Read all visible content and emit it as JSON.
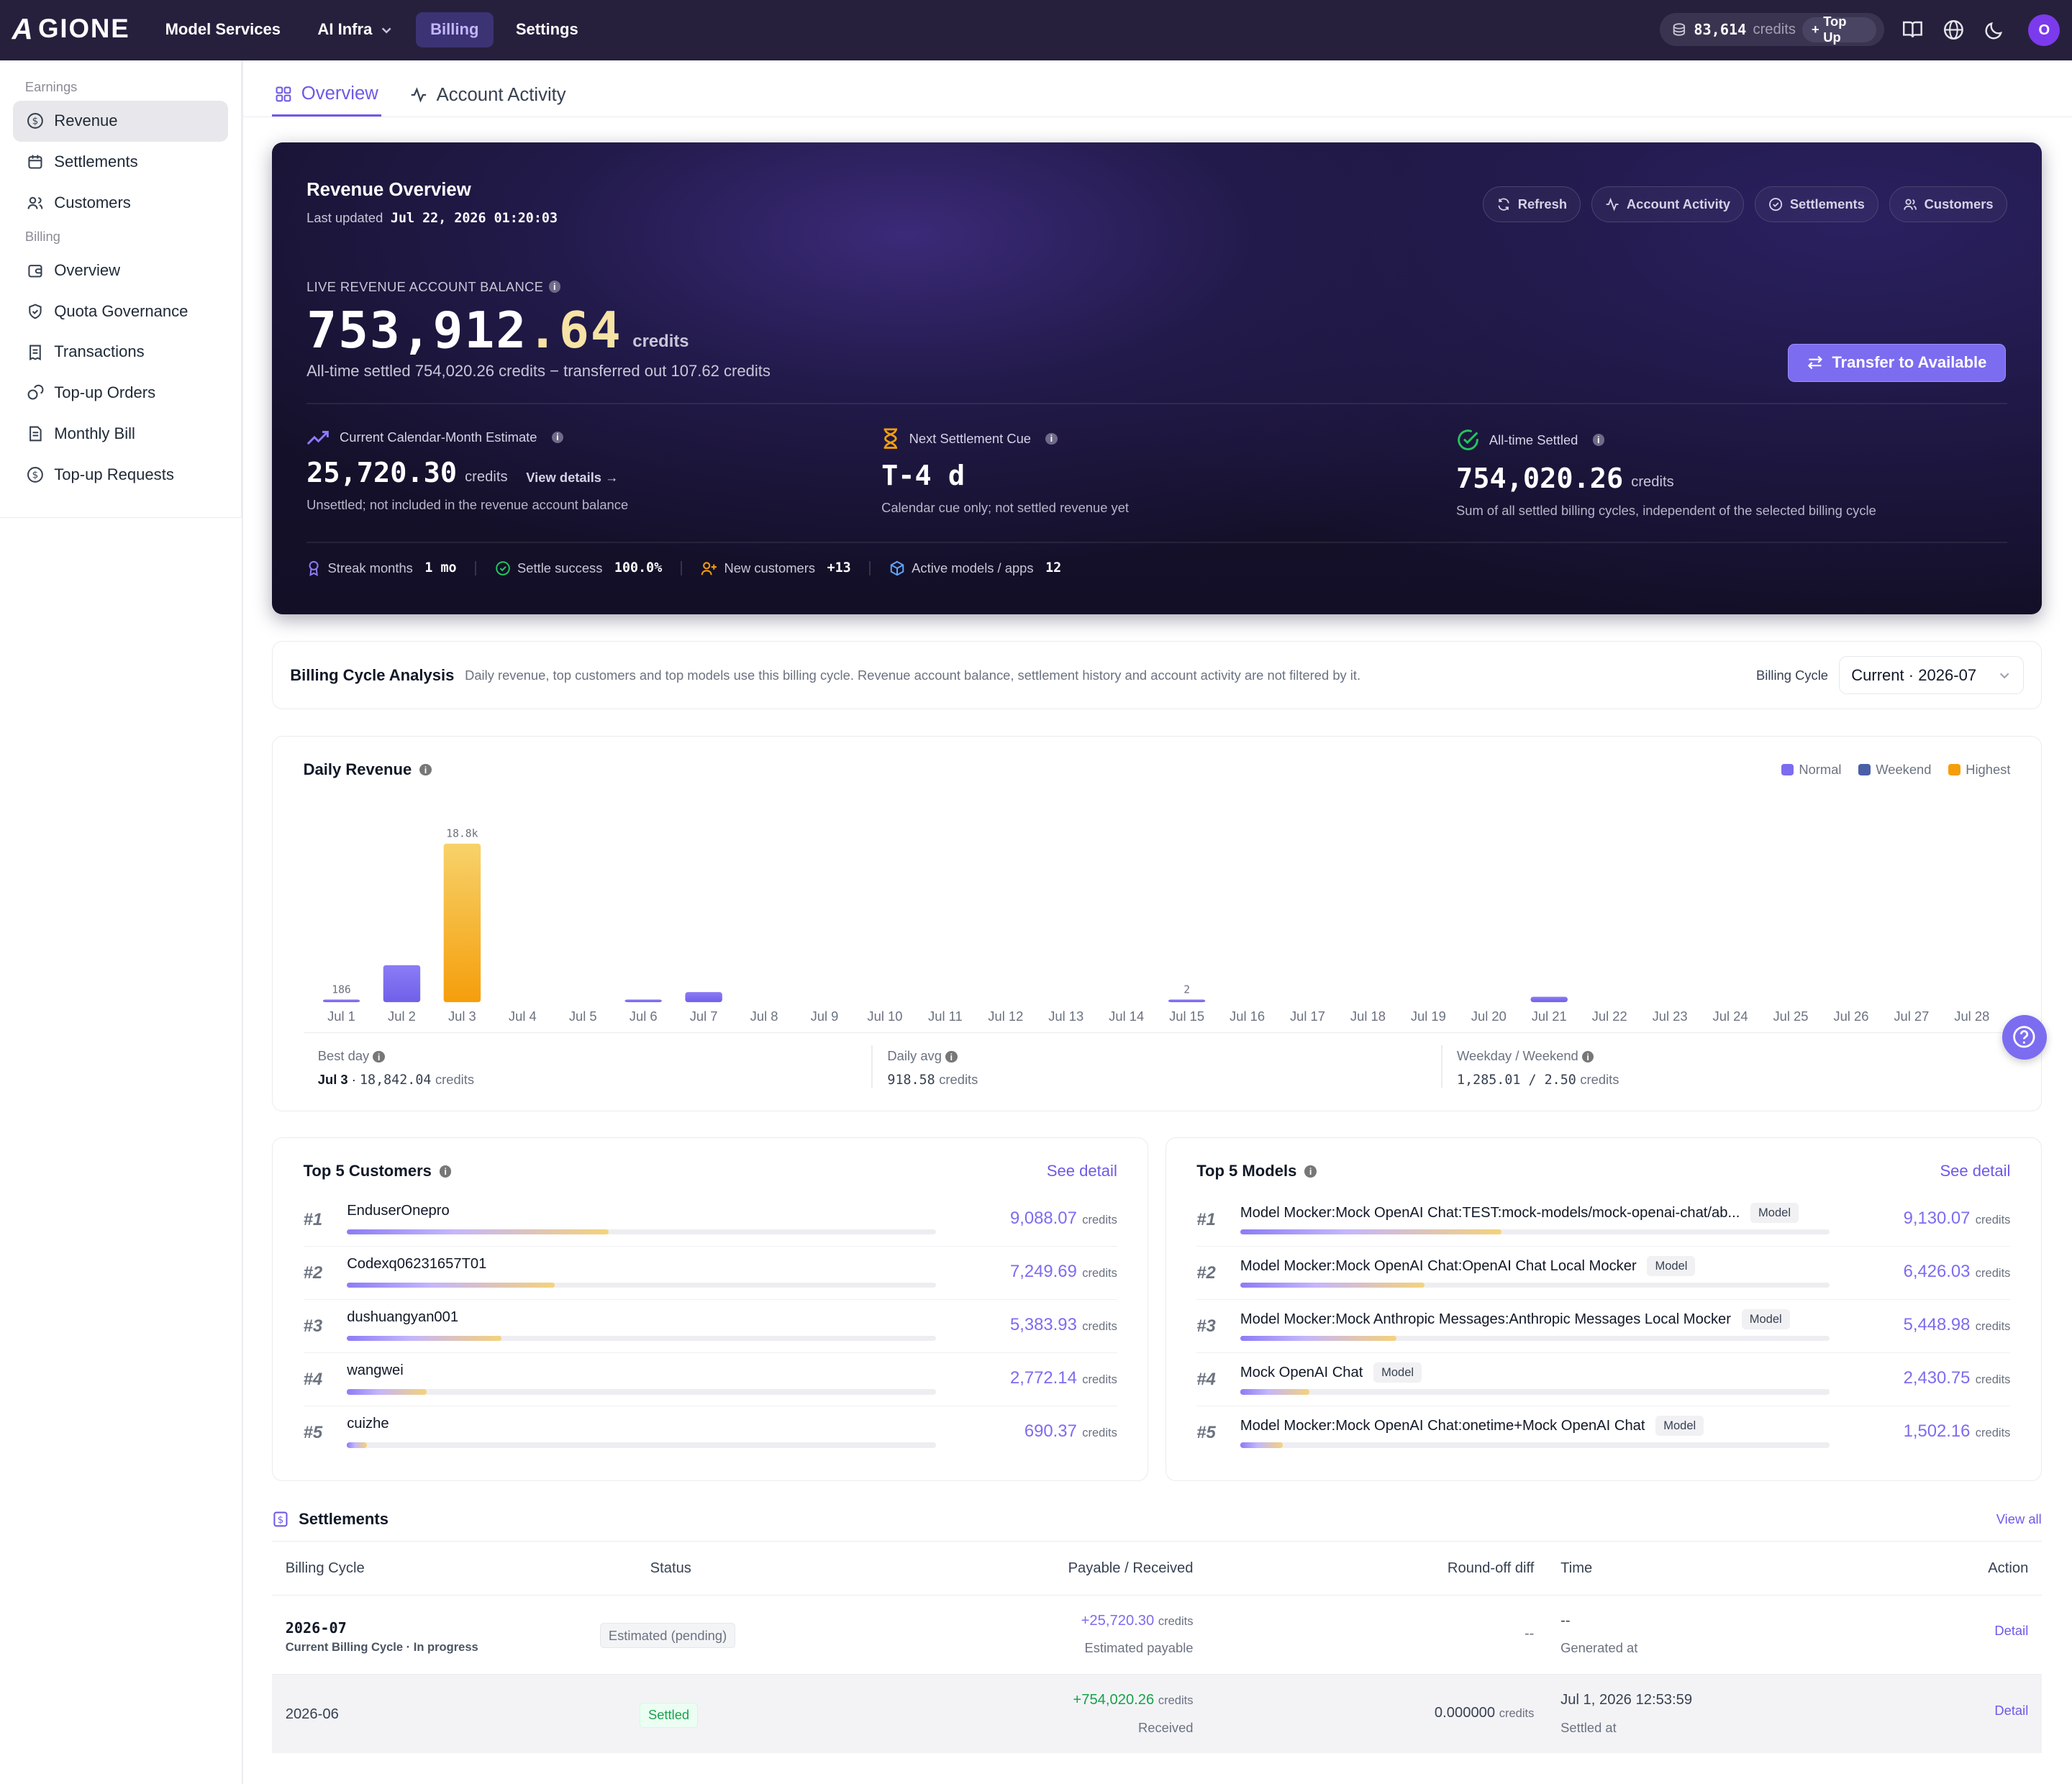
{
  "brand": {
    "name": "GIONE",
    "mark": "A"
  },
  "topnav": {
    "links": [
      "Model Services",
      "AI Infra",
      "Billing",
      "Settings"
    ],
    "credits_amount": "83,614",
    "credits_label": "credits",
    "topup_label": "Top Up",
    "avatar_initial": "O",
    "accent": "#7c6cf0"
  },
  "sidebar": {
    "earnings_label": "Earnings",
    "earnings_items": [
      "Revenue",
      "Settlements",
      "Customers"
    ],
    "billing_label": "Billing",
    "billing_items": [
      "Overview",
      "Quota Governance",
      "Transactions",
      "Top-up Orders",
      "Monthly Bill",
      "Top-up Requests"
    ]
  },
  "tabs": [
    "Overview",
    "Account Activity"
  ],
  "hero": {
    "title": "Revenue Overview",
    "updated_label": "Last updated",
    "updated_value": "Jul 22, 2026 01:20:03",
    "buttons": [
      "Refresh",
      "Account Activity",
      "Settlements",
      "Customers"
    ],
    "live_label": "LIVE REVENUE ACCOUNT BALANCE",
    "balance_int": "753,912",
    "balance_dec": ".64",
    "balance_unit": "credits",
    "alltime_text": "All-time settled 754,020.26 credits − transferred out 107.62 credits",
    "transfer_label": "Transfer to Available",
    "stats": [
      {
        "label": "Current Calendar-Month Estimate",
        "value": "25,720.30",
        "unit": "credits",
        "link": "View details →",
        "sub": "Unsettled; not included in the revenue account balance"
      },
      {
        "label": "Next Settlement Cue",
        "value": "T-4 d",
        "unit": "",
        "link": "",
        "sub": "Calendar cue only; not settled revenue yet"
      },
      {
        "label": "All-time Settled",
        "value": "754,020.26",
        "unit": "credits",
        "link": "",
        "sub": "Sum of all settled billing cycles, independent of the selected billing cycle"
      }
    ],
    "footer": [
      {
        "label": "Streak months",
        "value": "1 mo"
      },
      {
        "label": "Settle success",
        "value": "100.0%"
      },
      {
        "label": "New customers",
        "value": "+13"
      },
      {
        "label": "Active models / apps",
        "value": "12"
      }
    ]
  },
  "billing_cycle": {
    "title": "Billing Cycle Analysis",
    "desc": "Daily revenue, top customers and top models use this billing cycle. Revenue account balance, settlement history and account activity are not filtered by it.",
    "select_label": "Billing Cycle",
    "select_value": "Current · 2026-07"
  },
  "daily_revenue": {
    "title": "Daily Revenue",
    "legend": [
      {
        "name": "Normal",
        "color": "#7c6cf0"
      },
      {
        "name": "Weekend",
        "color": "#4b5fa8"
      },
      {
        "name": "Highest",
        "color": "#f59e0b"
      }
    ],
    "best_day_label": "Best day",
    "best_day_date": "Jul 3",
    "best_day_value": "18,842.04",
    "daily_avg_label": "Daily avg",
    "daily_avg_value": "918.58",
    "ww_label": "Weekday / Weekend",
    "ww_value": "1,285.01 / 2.50",
    "unit": "credits"
  },
  "chart_data": {
    "type": "bar",
    "title": "Daily Revenue",
    "categories": [
      "Jul 1",
      "Jul 2",
      "Jul 3",
      "Jul 4",
      "Jul 5",
      "Jul 6",
      "Jul 7",
      "Jul 8",
      "Jul 9",
      "Jul 10",
      "Jul 11",
      "Jul 12",
      "Jul 13",
      "Jul 14",
      "Jul 15",
      "Jul 16",
      "Jul 17",
      "Jul 18",
      "Jul 19",
      "Jul 20",
      "Jul 21",
      "Jul 22",
      "Jul 23",
      "Jul 24",
      "Jul 25",
      "Jul 26",
      "Jul 27",
      "Jul 28"
    ],
    "values": [
      186,
      4400,
      18842,
      0,
      0,
      240,
      1200,
      0,
      0,
      0,
      0,
      0,
      0,
      0,
      2,
      0,
      0,
      0,
      0,
      0,
      650,
      0,
      0,
      0,
      0,
      0,
      0,
      0
    ],
    "value_labels": {
      "0": "186",
      "2": "18.8k",
      "14": "2"
    },
    "kinds": [
      "normal",
      "normal",
      "highest",
      "weekend",
      "weekend",
      "normal",
      "normal",
      "normal",
      "normal",
      "normal",
      "weekend",
      "weekend",
      "normal",
      "normal",
      "normal",
      "normal",
      "normal",
      "weekend",
      "weekend",
      "normal",
      "normal",
      "normal",
      "normal",
      "normal",
      "weekend",
      "weekend",
      "normal",
      "normal"
    ],
    "ylim": [
      0,
      18842
    ],
    "grid": false,
    "legend_position": "top-right"
  },
  "top_customers": {
    "title": "Top 5 Customers",
    "see_detail": "See detail",
    "unit": "credits",
    "rows": [
      {
        "rank": "#1",
        "name": "EnduserOnepro",
        "value": "9,088.07",
        "pct": 0.355
      },
      {
        "rank": "#2",
        "name": "Codexq06231657T01",
        "value": "7,249.69",
        "pct": 0.282
      },
      {
        "rank": "#3",
        "name": "dushuangyan001",
        "value": "5,383.93",
        "pct": 0.21
      },
      {
        "rank": "#4",
        "name": "wangwei",
        "value": "2,772.14",
        "pct": 0.108
      },
      {
        "rank": "#5",
        "name": "cuizhe",
        "value": "690.37",
        "pct": 0.027
      }
    ]
  },
  "top_models": {
    "title": "Top 5 Models",
    "see_detail": "See detail",
    "unit": "credits",
    "tag": "Model",
    "rows": [
      {
        "rank": "#1",
        "name": "Model Mocker:Mock OpenAI Chat:TEST:mock-models/mock-openai-chat/ab...",
        "value": "9,130.07",
        "pct": 0.355
      },
      {
        "rank": "#2",
        "name": "Model Mocker:Mock OpenAI Chat:OpenAI Chat Local Mocker",
        "value": "6,426.03",
        "pct": 0.25
      },
      {
        "rank": "#3",
        "name": "Model Mocker:Mock Anthropic Messages:Anthropic Messages Local Mocker",
        "value": "5,448.98",
        "pct": 0.212
      },
      {
        "rank": "#4",
        "name": "Mock OpenAI Chat",
        "value": "2,430.75",
        "pct": 0.094
      },
      {
        "rank": "#5",
        "name": "Model Mocker:Mock OpenAI Chat:onetime+Mock OpenAI Chat",
        "value": "1,502.16",
        "pct": 0.058
      }
    ]
  },
  "settlements": {
    "title": "Settlements",
    "view_all": "View all",
    "headers": [
      "Billing Cycle",
      "Status",
      "Payable / Received",
      "Round-off diff",
      "Time",
      "Action"
    ],
    "rows": [
      {
        "cycle": "2026-07",
        "cycle_sub": "Current Billing Cycle · In progress",
        "status": "Estimated (pending)",
        "amount": "+25,720.30",
        "amount_unit": "credits",
        "amount_sub": "Estimated payable",
        "diff": "--",
        "diff_unit": "",
        "time": "--",
        "time_sub": "Generated at",
        "action": "Detail"
      },
      {
        "cycle": "2026-06",
        "cycle_sub": "",
        "status": "Settled",
        "amount": "+754,020.26",
        "amount_unit": "credits",
        "amount_sub": "Received",
        "diff": "0.000000",
        "diff_unit": "credits",
        "time": "Jul 1, 2026 12:53:59",
        "time_sub": "Settled at",
        "action": "Detail"
      }
    ]
  }
}
